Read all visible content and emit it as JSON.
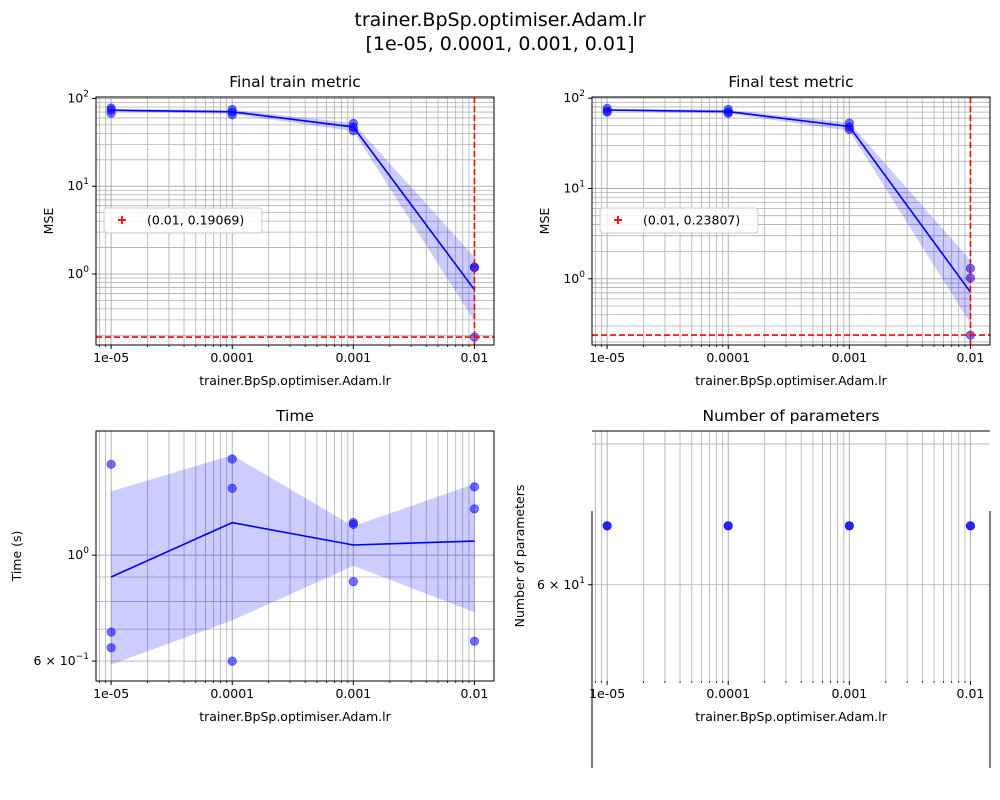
{
  "figure": {
    "title_line1": "trainer.BpSp.optimiser.Adam.lr",
    "title_line2": "[1e-05, 0.0001, 0.001, 0.01]"
  },
  "colors": {
    "series": "#0000ff",
    "band": "#0000ff",
    "points": "#0000ff",
    "best": "#ff0000",
    "grid": "#b0b0b0"
  },
  "chart_data": [
    {
      "id": "train",
      "type": "line",
      "title": "Final train metric",
      "xlabel": "trainer.BpSp.optimiser.Adam.lr",
      "ylabel": "MSE",
      "xscale": "log",
      "yscale": "log",
      "xlim": [
        7.5e-06,
        0.0145
      ],
      "ylim": [
        0.155,
        104
      ],
      "xticks": [
        {
          "value": 1e-05,
          "label": "1e-05"
        },
        {
          "value": 0.0001,
          "label": "0.0001"
        },
        {
          "value": 0.001,
          "label": "0.001"
        },
        {
          "value": 0.01,
          "label": "0.01"
        }
      ],
      "yticks": [
        {
          "value": 1,
          "label": "10",
          "exp": "0"
        },
        {
          "value": 10,
          "label": "10",
          "exp": "1"
        },
        {
          "value": 100,
          "label": "10",
          "exp": "2"
        }
      ],
      "grid": true,
      "x": [
        1e-05,
        0.0001,
        0.001,
        0.01
      ],
      "mean": [
        73.5,
        70.5,
        47.5,
        0.66
      ],
      "band_low": [
        71.5,
        66.5,
        42.5,
        0.29
      ],
      "band_high": [
        75.5,
        74.5,
        52.5,
        1.55
      ],
      "points": [
        [
          1e-05,
          78
        ],
        [
          1e-05,
          74
        ],
        [
          1e-05,
          68
        ],
        [
          0.0001,
          75
        ],
        [
          0.0001,
          70
        ],
        [
          0.0001,
          65
        ],
        [
          0.001,
          52
        ],
        [
          0.001,
          47
        ],
        [
          0.001,
          43
        ],
        [
          0.01,
          1.2
        ],
        [
          0.01,
          1.18
        ],
        [
          0.01,
          0.19069
        ]
      ],
      "best": {
        "x": 0.01,
        "y": 0.19069
      },
      "legend": {
        "label": "(0.01, 0.19069)",
        "position": "center-left"
      }
    },
    {
      "id": "test",
      "type": "line",
      "title": "Final test metric",
      "xlabel": "trainer.BpSp.optimiser.Adam.lr",
      "ylabel": "MSE",
      "xscale": "log",
      "yscale": "log",
      "xlim": [
        7.5e-06,
        0.0145
      ],
      "ylim": [
        0.185,
        103
      ],
      "xticks": [
        {
          "value": 1e-05,
          "label": "1e-05"
        },
        {
          "value": 0.0001,
          "label": "0.0001"
        },
        {
          "value": 0.001,
          "label": "0.001"
        },
        {
          "value": 0.01,
          "label": "0.01"
        }
      ],
      "yticks": [
        {
          "value": 1,
          "label": "10",
          "exp": "0"
        },
        {
          "value": 10,
          "label": "10",
          "exp": "1"
        },
        {
          "value": 100,
          "label": "10",
          "exp": "2"
        }
      ],
      "grid": true,
      "x": [
        1e-05,
        0.0001,
        0.001,
        0.01
      ],
      "mean": [
        74,
        71,
        48.5,
        0.71
      ],
      "band_low": [
        71.5,
        67.5,
        43.5,
        0.32
      ],
      "band_high": [
        76.5,
        74.5,
        53.5,
        1.6
      ],
      "points": [
        [
          1e-05,
          77
        ],
        [
          1e-05,
          72
        ],
        [
          1e-05,
          70
        ],
        [
          0.0001,
          75
        ],
        [
          0.0001,
          70
        ],
        [
          0.0001,
          68
        ],
        [
          0.001,
          53
        ],
        [
          0.001,
          48
        ],
        [
          0.001,
          45
        ],
        [
          0.01,
          1.3
        ],
        [
          0.01,
          1.02
        ],
        [
          0.01,
          0.23807
        ]
      ],
      "best": {
        "x": 0.01,
        "y": 0.23807
      },
      "legend": {
        "label": "(0.01, 0.23807)",
        "position": "center-left"
      }
    },
    {
      "id": "time",
      "type": "line",
      "title": "Time",
      "xlabel": "trainer.BpSp.optimiser.Adam.lr",
      "ylabel": "Time (s)",
      "xscale": "log",
      "yscale": "log",
      "xlim": [
        7.5e-06,
        0.0145
      ],
      "ylim": [
        0.545,
        1.82
      ],
      "xticks": [
        {
          "value": 1e-05,
          "label": "1e-05"
        },
        {
          "value": 0.0001,
          "label": "0.0001"
        },
        {
          "value": 0.001,
          "label": "0.001"
        },
        {
          "value": 0.01,
          "label": "0.01"
        }
      ],
      "yticks": [
        {
          "value": 0.6,
          "label": "6 × 10",
          "exp": "−1"
        },
        {
          "value": 1,
          "label": "10",
          "exp": "0"
        }
      ],
      "grid": true,
      "x": [
        1e-05,
        0.0001,
        0.001,
        0.01
      ],
      "mean": [
        0.9,
        1.17,
        1.05,
        1.07
      ],
      "band_low": [
        0.59,
        0.73,
        0.95,
        0.76
      ],
      "band_high": [
        1.36,
        1.62,
        1.15,
        1.41
      ],
      "points": [
        [
          1e-05,
          1.55
        ],
        [
          1e-05,
          0.69
        ],
        [
          1e-05,
          0.64
        ],
        [
          0.0001,
          1.59
        ],
        [
          0.0001,
          1.38
        ],
        [
          0.0001,
          0.6
        ],
        [
          0.001,
          1.17
        ],
        [
          0.001,
          1.16
        ],
        [
          0.001,
          0.88
        ],
        [
          0.01,
          1.39
        ],
        [
          0.01,
          1.25
        ],
        [
          0.01,
          0.66
        ]
      ]
    },
    {
      "id": "params",
      "type": "line",
      "title": "Number of parameters",
      "xlabel": "trainer.BpSp.optimiser.Adam.lr",
      "ylabel": "Number of parameters",
      "xscale": "log",
      "yscale": "log",
      "xlim": [
        7.5e-06,
        0.0145
      ],
      "ylim": [
        54,
        71
      ],
      "xticks": [
        {
          "value": 1e-05,
          "label": "1e-05"
        },
        {
          "value": 0.0001,
          "label": "0.0001"
        },
        {
          "value": 0.001,
          "label": "0.001"
        },
        {
          "value": 0.01,
          "label": "0.01"
        }
      ],
      "yticks": [
        {
          "value": 60,
          "label": "6 × 10",
          "exp": "1"
        }
      ],
      "grid": true,
      "x": [
        1e-05,
        0.0001,
        0.001,
        0.01
      ],
      "mean": [
        64,
        64,
        64,
        64
      ],
      "points": [
        [
          1e-05,
          64
        ],
        [
          0.0001,
          64
        ],
        [
          0.001,
          64
        ],
        [
          0.01,
          64
        ]
      ]
    }
  ]
}
